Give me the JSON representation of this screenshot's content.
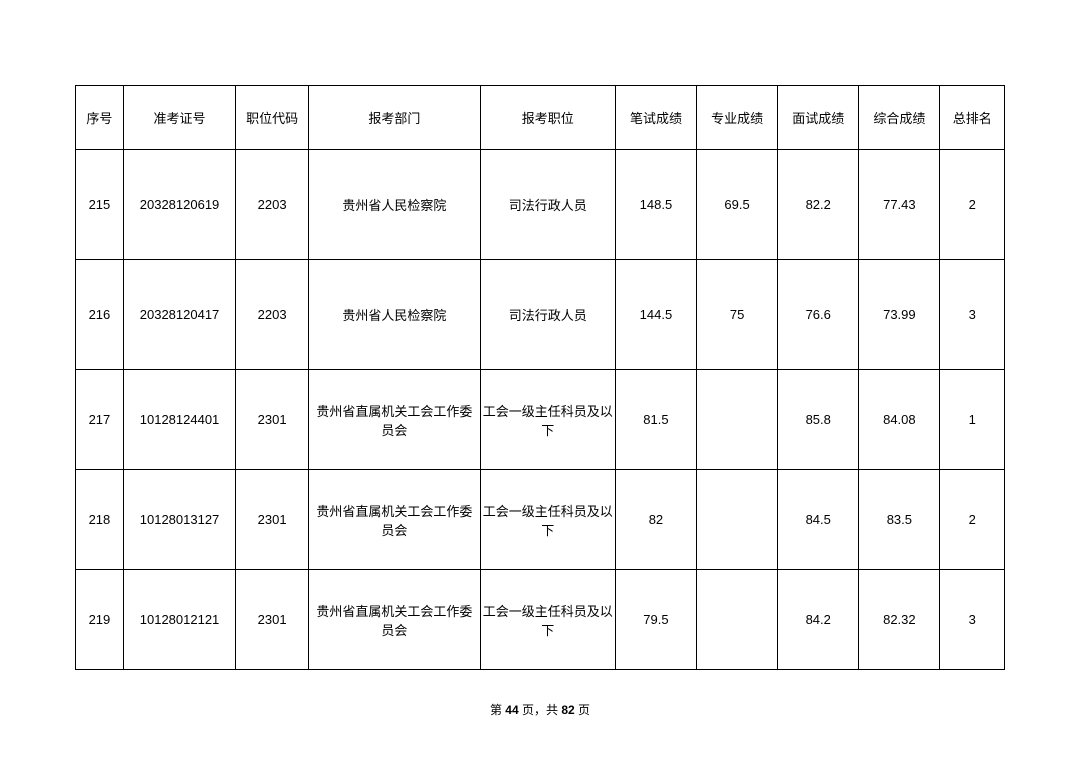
{
  "table": {
    "headers": {
      "seq": "序号",
      "exam_no": "准考证号",
      "job_code": "职位代码",
      "dept": "报考部门",
      "position": "报考职位",
      "written": "笔试成绩",
      "pro": "专业成绩",
      "interview": "面试成绩",
      "total": "综合成绩",
      "rank": "总排名"
    },
    "rows": [
      {
        "seq": "215",
        "exam_no": "20328120619",
        "job_code": "2203",
        "dept": "贵州省人民检察院",
        "position": "司法行政人员",
        "written": "148.5",
        "pro": "69.5",
        "interview": "82.2",
        "total": "77.43",
        "rank": "2",
        "row_class": "tall"
      },
      {
        "seq": "216",
        "exam_no": "20328120417",
        "job_code": "2203",
        "dept": "贵州省人民检察院",
        "position": "司法行政人员",
        "written": "144.5",
        "pro": "75",
        "interview": "76.6",
        "total": "73.99",
        "rank": "3",
        "row_class": "tall"
      },
      {
        "seq": "217",
        "exam_no": "10128124401",
        "job_code": "2301",
        "dept": "贵州省直属机关工会工作委员会",
        "position": "工会一级主任科员及以下",
        "written": "81.5",
        "pro": "",
        "interview": "85.8",
        "total": "84.08",
        "rank": "1",
        "row_class": "med"
      },
      {
        "seq": "218",
        "exam_no": "10128013127",
        "job_code": "2301",
        "dept": "贵州省直属机关工会工作委员会",
        "position": "工会一级主任科员及以下",
        "written": "82",
        "pro": "",
        "interview": "84.5",
        "total": "83.5",
        "rank": "2",
        "row_class": "med"
      },
      {
        "seq": "219",
        "exam_no": "10128012121",
        "job_code": "2301",
        "dept": "贵州省直属机关工会工作委员会",
        "position": "工会一级主任科员及以下",
        "written": "79.5",
        "pro": "",
        "interview": "84.2",
        "total": "82.32",
        "rank": "3",
        "row_class": "med"
      }
    ]
  },
  "footer": {
    "prefix": "第 ",
    "current": "44",
    "mid": " 页，共 ",
    "total": "82",
    "suffix": " 页"
  }
}
